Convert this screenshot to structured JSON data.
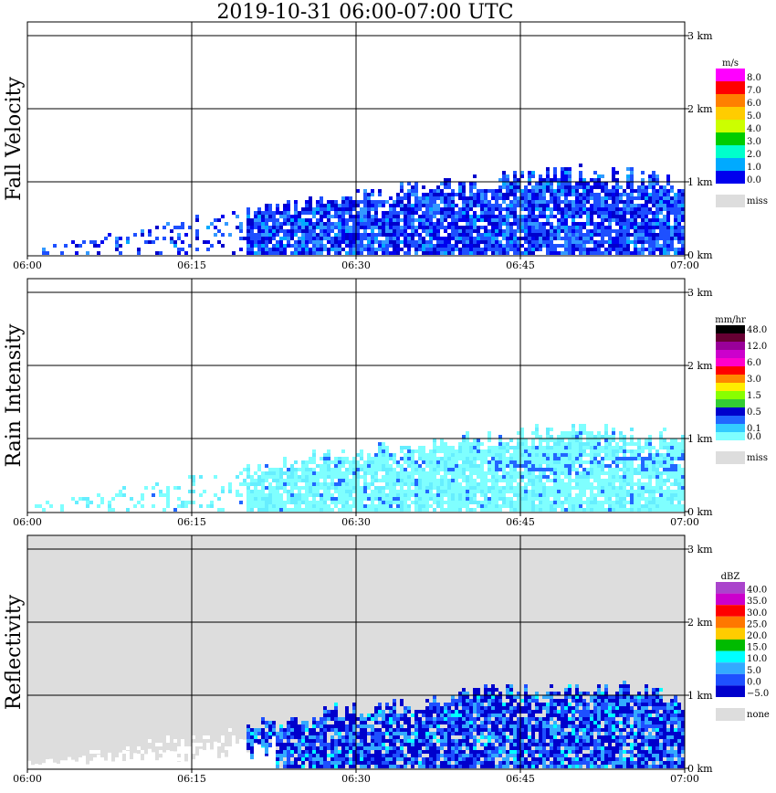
{
  "title": "2019-10-31   06:00-07:00 UTC",
  "colors": {
    "cyan_light": "#7fffff",
    "blue_dark": "#0000cc",
    "blue_mid": "#1e50ff",
    "blue_light": "#33aaff",
    "missing_gray": "#dddddd"
  },
  "chart_data": [
    {
      "type": "heatmap",
      "panel_label": "Fall Velocity",
      "x_ticks": [
        "06:00",
        "06:15",
        "06:30",
        "06:45",
        "07:00"
      ],
      "y_ticks": [
        "0 km",
        "1 km",
        "2 km",
        "3 km"
      ],
      "xlim": [
        "06:00",
        "07:00"
      ],
      "ylim_km": [
        0,
        3.1
      ],
      "grid": true,
      "legend": {
        "unit": "m/s",
        "entries": [
          {
            "label": "8.0",
            "color": "#ff00ff"
          },
          {
            "label": "7.0",
            "color": "#ff0000"
          },
          {
            "label": "6.0",
            "color": "#ff8000"
          },
          {
            "label": "5.0",
            "color": "#ffcc00"
          },
          {
            "label": "4.0",
            "color": "#ccff00"
          },
          {
            "label": "3.0",
            "color": "#00cc00"
          },
          {
            "label": "2.0",
            "color": "#00ffcc"
          },
          {
            "label": "1.0",
            "color": "#00aaff"
          },
          {
            "label": "0.0",
            "color": "#0000ee"
          }
        ],
        "missing_label": "miss",
        "missing_color": "#dddddd"
      },
      "echo_top_km": [
        [
          6.0,
          0.05
        ],
        [
          6.25,
          0.45
        ],
        [
          6.33,
          0.55
        ],
        [
          6.5,
          0.8
        ],
        [
          6.67,
          0.95
        ],
        [
          6.83,
          1.1
        ],
        [
          7.0,
          0.95
        ]
      ],
      "dominant_value": "0.0-2.0 m/s"
    },
    {
      "type": "heatmap",
      "panel_label": "Rain Intensity",
      "x_ticks": [
        "06:00",
        "06:15",
        "06:30",
        "06:45",
        "07:00"
      ],
      "y_ticks": [
        "0 km",
        "1 km",
        "2 km",
        "3 km"
      ],
      "xlim": [
        "06:00",
        "07:00"
      ],
      "ylim_km": [
        0,
        3.1
      ],
      "grid": true,
      "legend": {
        "unit": "mm/hr",
        "entries": [
          {
            "label": "48.0",
            "color": "#000000"
          },
          {
            "label": "",
            "color": "#660033"
          },
          {
            "label": "12.0",
            "color": "#990099"
          },
          {
            "label": "",
            "color": "#cc00cc"
          },
          {
            "label": "6.0",
            "color": "#ff00cc"
          },
          {
            "label": "",
            "color": "#ff0000"
          },
          {
            "label": "3.0",
            "color": "#ff8800"
          },
          {
            "label": "",
            "color": "#ffee00"
          },
          {
            "label": "1.5",
            "color": "#88ff00"
          },
          {
            "label": "",
            "color": "#33cc33"
          },
          {
            "label": "0.5",
            "color": "#0000cc"
          },
          {
            "label": "",
            "color": "#2266ff"
          },
          {
            "label": "0.1",
            "color": "#33ccff"
          },
          {
            "label": "0.0",
            "color": "#7fffff"
          }
        ],
        "missing_label": "miss",
        "missing_color": "#dddddd"
      },
      "echo_top_km": [
        [
          6.0,
          0.05
        ],
        [
          6.25,
          0.45
        ],
        [
          6.33,
          0.55
        ],
        [
          6.5,
          0.8
        ],
        [
          6.67,
          0.95
        ],
        [
          6.83,
          1.1
        ],
        [
          7.0,
          0.95
        ]
      ],
      "dominant_value": "0.0-0.1 mm/hr"
    },
    {
      "type": "heatmap",
      "panel_label": "Reflectivity",
      "x_ticks": [
        "06:00",
        "06:15",
        "06:30",
        "06:45",
        "07:00"
      ],
      "y_ticks": [
        "0 km",
        "1 km",
        "2 km",
        "3 km"
      ],
      "xlim": [
        "06:00",
        "07:00"
      ],
      "ylim_km": [
        0,
        3.1
      ],
      "grid": true,
      "background": "#dddddd",
      "legend": {
        "unit": "dBZ",
        "entries": [
          {
            "label": "40.0",
            "color": "#aa44cc"
          },
          {
            "label": "35.0",
            "color": "#cc00cc"
          },
          {
            "label": "30.0",
            "color": "#ff0000"
          },
          {
            "label": "25.0",
            "color": "#ff7700"
          },
          {
            "label": "20.0",
            "color": "#ffcc00"
          },
          {
            "label": "15.0",
            "color": "#00bb00"
          },
          {
            "label": "10.0",
            "color": "#00ffff"
          },
          {
            "label": "5.0",
            "color": "#33aaff"
          },
          {
            "label": "0.0",
            "color": "#1e50ff"
          },
          {
            "label": "−5.0",
            "color": "#0000cc"
          }
        ],
        "missing_label": "none",
        "missing_color": "#dddddd"
      },
      "echo_top_km": [
        [
          6.0,
          0.05
        ],
        [
          6.25,
          0.45
        ],
        [
          6.33,
          0.55
        ],
        [
          6.5,
          0.8
        ],
        [
          6.67,
          0.95
        ],
        [
          6.83,
          1.1
        ],
        [
          7.0,
          0.95
        ]
      ],
      "dominant_value": "-5.0-10.0 dBZ"
    }
  ]
}
